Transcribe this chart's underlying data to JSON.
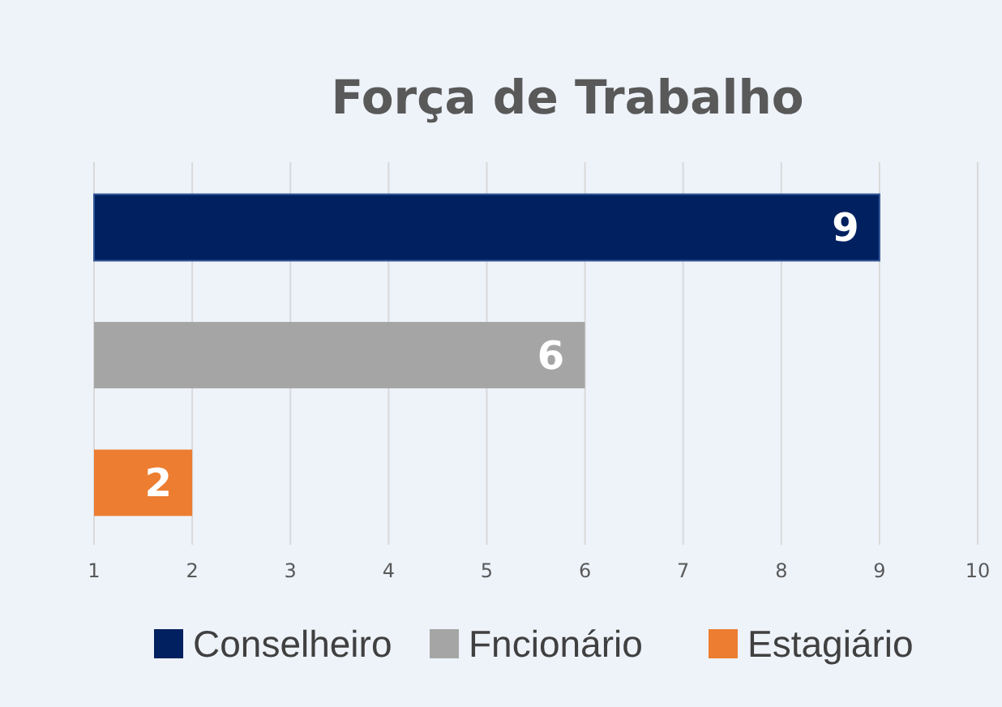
{
  "chart_data": {
    "type": "bar",
    "title": "Força de Trabalho",
    "orientation": "horizontal",
    "categories": [
      null,
      null,
      null
    ],
    "series": [
      {
        "name": "Conselheiro",
        "color": "#002060",
        "values": [
          9,
          null,
          null
        ]
      },
      {
        "name": "Fncionário",
        "color": "#a5a5a5",
        "values": [
          null,
          6,
          null
        ]
      },
      {
        "name": "Estagiário",
        "color": "#ed7d31",
        "values": [
          null,
          null,
          2
        ]
      }
    ],
    "xlim": [
      1,
      10
    ],
    "xticks": [
      1,
      2,
      3,
      4,
      5,
      6,
      7,
      8,
      9,
      10
    ],
    "grid": "x",
    "legend": "bottom",
    "data_labels": true
  }
}
